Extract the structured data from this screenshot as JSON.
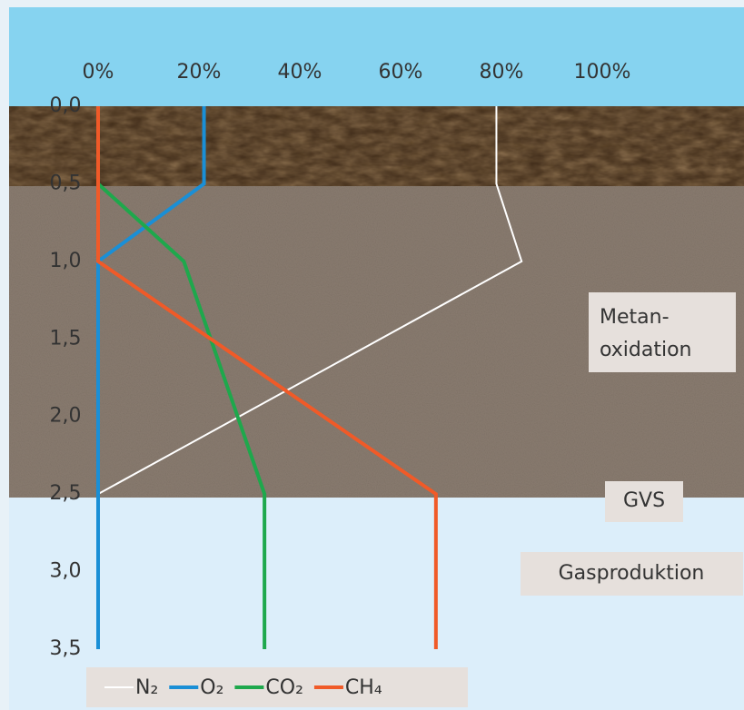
{
  "chart_data": {
    "type": "line",
    "orientation": "vertical-depth",
    "depth": [
      0,
      0.5,
      1.0,
      2.5,
      3.5
    ],
    "depth_lim": [
      0,
      3.5
    ],
    "depth_ticks": [
      {
        "value": 0,
        "label": "0,0"
      },
      {
        "value": 0.5,
        "label": "0,5"
      },
      {
        "value": 1.0,
        "label": "1,0"
      },
      {
        "value": 1.5,
        "label": "1,5"
      },
      {
        "value": 2.0,
        "label": "2,0"
      },
      {
        "value": 2.5,
        "label": "2,5"
      },
      {
        "value": 3.0,
        "label": "3,0"
      },
      {
        "value": 3.5,
        "label": "3,5"
      }
    ],
    "value_lim": [
      0,
      100
    ],
    "value_ticks": [
      {
        "value": 0,
        "label": "0%"
      },
      {
        "value": 20,
        "label": "20%"
      },
      {
        "value": 40,
        "label": "40%"
      },
      {
        "value": 60,
        "label": "60%"
      },
      {
        "value": 80,
        "label": "80%"
      },
      {
        "value": 100,
        "label": "100%"
      }
    ],
    "series": [
      {
        "name": "N₂",
        "color": "#ffffff",
        "values": [
          79,
          79,
          84,
          0,
          null
        ]
      },
      {
        "name": "O₂",
        "color": "#1a8fd6",
        "values": [
          21,
          21,
          0,
          0,
          0
        ]
      },
      {
        "name": "CO₂",
        "color": "#1ea84c",
        "values": [
          0,
          0,
          17,
          33,
          33
        ]
      },
      {
        "name": "CH₄",
        "color": "#f05a28",
        "values": [
          0,
          0,
          0,
          67,
          67
        ]
      }
    ],
    "annotations": [
      "Metan-",
      "oxidation",
      "GVS",
      "Gasproduktion"
    ]
  }
}
